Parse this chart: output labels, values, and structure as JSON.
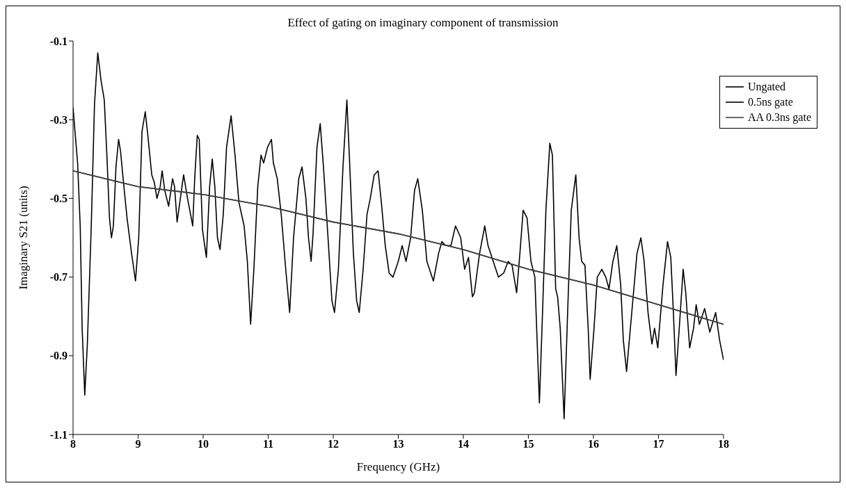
{
  "chart_data": {
    "type": "line",
    "title": "Effect of gating on imaginary component of transmission",
    "xlabel": "Frequency (GHz)",
    "ylabel": "Imaginary S21 (units)",
    "xlim": [
      8,
      18
    ],
    "xticks": [
      8,
      9,
      10,
      11,
      12,
      13,
      14,
      15,
      16,
      17,
      18
    ],
    "ylim": [
      -1.1,
      -0.1
    ],
    "yticks": [
      -1.1,
      -0.9,
      -0.7,
      -0.5,
      -0.3,
      -0.1
    ],
    "grid": false,
    "legend": "top right",
    "series": [
      {
        "name": "Ungated",
        "color": "#000000",
        "x": [
          8.0,
          8.07,
          8.11,
          8.14,
          8.18,
          8.22,
          8.28,
          8.33,
          8.38,
          8.43,
          8.48,
          8.52,
          8.56,
          8.59,
          8.62,
          8.66,
          8.7,
          8.73,
          8.77,
          8.83,
          8.9,
          8.96,
          9.01,
          9.06,
          9.11,
          9.15,
          9.21,
          9.25,
          9.29,
          9.34,
          9.37,
          9.41,
          9.47,
          9.53,
          9.56,
          9.6,
          9.65,
          9.7,
          9.76,
          9.84,
          9.87,
          9.91,
          9.94,
          9.99,
          10.05,
          10.1,
          10.14,
          10.18,
          10.22,
          10.26,
          10.31,
          10.36,
          10.43,
          10.49,
          10.55,
          10.63,
          10.68,
          10.73,
          10.78,
          10.84,
          10.89,
          10.93,
          10.99,
          11.05,
          11.08,
          11.14,
          11.2,
          11.27,
          11.33,
          11.39,
          11.47,
          11.52,
          11.58,
          11.62,
          11.66,
          11.69,
          11.75,
          11.8,
          11.85,
          11.92,
          11.98,
          12.02,
          12.08,
          12.15,
          12.21,
          12.25,
          12.31,
          12.36,
          12.4,
          12.46,
          12.52,
          12.57,
          12.63,
          12.69,
          12.74,
          12.8,
          12.86,
          12.92,
          13.0,
          13.06,
          13.12,
          13.19,
          13.25,
          13.3,
          13.37,
          13.44,
          13.5,
          13.54,
          13.62,
          13.67,
          13.73,
          13.81,
          13.88,
          13.96,
          14.02,
          14.08,
          14.14,
          14.17,
          14.25,
          14.33,
          14.38,
          14.46,
          14.54,
          14.62,
          14.69,
          14.75,
          14.82,
          14.87,
          14.92,
          14.98,
          15.04,
          15.1,
          15.13,
          15.17,
          15.21,
          15.27,
          15.33,
          15.37,
          15.42,
          15.45,
          15.49,
          15.55,
          15.61,
          15.66,
          15.73,
          15.78,
          15.82,
          15.87,
          15.92,
          15.95,
          16.01,
          16.06,
          16.13,
          16.19,
          16.24,
          16.3,
          16.36,
          16.42,
          16.46,
          16.51,
          16.59,
          16.67,
          16.73,
          16.78,
          16.84,
          16.9,
          16.94,
          16.99,
          17.07,
          17.14,
          17.19,
          17.23,
          17.27,
          17.32,
          17.38,
          17.42,
          17.48,
          17.54,
          17.58,
          17.63,
          17.71,
          17.79,
          17.88,
          17.94,
          18.0
        ],
        "values": [
          -0.27,
          -0.41,
          -0.57,
          -0.83,
          -1.0,
          -0.87,
          -0.57,
          -0.26,
          -0.13,
          -0.2,
          -0.25,
          -0.39,
          -0.55,
          -0.6,
          -0.57,
          -0.42,
          -0.35,
          -0.38,
          -0.45,
          -0.55,
          -0.64,
          -0.71,
          -0.6,
          -0.33,
          -0.28,
          -0.34,
          -0.44,
          -0.46,
          -0.5,
          -0.47,
          -0.43,
          -0.48,
          -0.52,
          -0.45,
          -0.47,
          -0.56,
          -0.5,
          -0.44,
          -0.5,
          -0.57,
          -0.45,
          -0.34,
          -0.35,
          -0.58,
          -0.65,
          -0.47,
          -0.4,
          -0.47,
          -0.6,
          -0.63,
          -0.54,
          -0.37,
          -0.29,
          -0.39,
          -0.51,
          -0.57,
          -0.66,
          -0.82,
          -0.68,
          -0.47,
          -0.39,
          -0.41,
          -0.37,
          -0.35,
          -0.41,
          -0.45,
          -0.54,
          -0.68,
          -0.79,
          -0.6,
          -0.45,
          -0.42,
          -0.5,
          -0.6,
          -0.66,
          -0.59,
          -0.37,
          -0.31,
          -0.42,
          -0.6,
          -0.76,
          -0.79,
          -0.68,
          -0.42,
          -0.25,
          -0.4,
          -0.64,
          -0.76,
          -0.79,
          -0.68,
          -0.54,
          -0.5,
          -0.44,
          -0.43,
          -0.51,
          -0.62,
          -0.69,
          -0.7,
          -0.66,
          -0.62,
          -0.66,
          -0.6,
          -0.48,
          -0.45,
          -0.53,
          -0.66,
          -0.69,
          -0.71,
          -0.64,
          -0.61,
          -0.62,
          -0.62,
          -0.57,
          -0.6,
          -0.68,
          -0.65,
          -0.75,
          -0.74,
          -0.64,
          -0.57,
          -0.62,
          -0.66,
          -0.7,
          -0.69,
          -0.66,
          -0.67,
          -0.74,
          -0.64,
          -0.53,
          -0.55,
          -0.66,
          -0.7,
          -0.84,
          -1.02,
          -0.83,
          -0.53,
          -0.36,
          -0.39,
          -0.73,
          -0.75,
          -0.83,
          -1.06,
          -0.76,
          -0.53,
          -0.44,
          -0.6,
          -0.66,
          -0.67,
          -0.83,
          -0.96,
          -0.83,
          -0.7,
          -0.68,
          -0.7,
          -0.73,
          -0.66,
          -0.62,
          -0.72,
          -0.86,
          -0.94,
          -0.79,
          -0.64,
          -0.6,
          -0.66,
          -0.79,
          -0.87,
          -0.83,
          -0.88,
          -0.72,
          -0.61,
          -0.65,
          -0.79,
          -0.95,
          -0.83,
          -0.68,
          -0.74,
          -0.88,
          -0.83,
          -0.77,
          -0.82,
          -0.78,
          -0.84,
          -0.79,
          -0.86,
          -0.91
        ]
      },
      {
        "name": "0.5ns gate",
        "color": "#000000",
        "x": [
          8,
          9,
          10,
          11,
          12,
          13,
          14,
          15,
          16,
          17,
          18
        ],
        "values": [
          -0.43,
          -0.47,
          -0.49,
          -0.52,
          -0.56,
          -0.59,
          -0.63,
          -0.68,
          -0.72,
          -0.77,
          -0.82
        ]
      },
      {
        "name": "AA 0.3ns gate",
        "color": "#444444",
        "x": [
          8,
          9,
          10,
          11,
          12,
          13,
          14,
          15,
          16,
          17,
          18
        ],
        "values": [
          -0.43,
          -0.47,
          -0.49,
          -0.52,
          -0.56,
          -0.59,
          -0.63,
          -0.68,
          -0.72,
          -0.77,
          -0.82
        ]
      }
    ]
  }
}
